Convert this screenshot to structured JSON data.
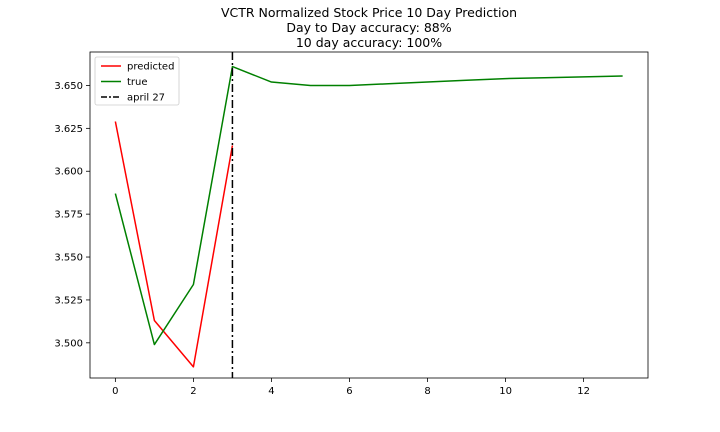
{
  "chart_data": {
    "type": "line",
    "title": [
      "VCTR Normalized Stock Price 10 Day Prediction",
      "Day to Day accuracy: 88%",
      "10 day accuracy: 100%"
    ],
    "xlabel": "",
    "ylabel": "",
    "xlim": [
      -0.65,
      13.65
    ],
    "ylim": [
      3.4795,
      3.6695
    ],
    "x_ticks": [
      0,
      2,
      4,
      6,
      8,
      10,
      12
    ],
    "y_ticks": [
      3.5,
      3.525,
      3.55,
      3.575,
      3.6,
      3.625,
      3.65
    ],
    "grid": false,
    "legend_position": "top-left",
    "series": [
      {
        "name": "predicted",
        "color": "#ff0000",
        "style": "solid",
        "x": [
          0,
          1,
          2,
          3
        ],
        "y": [
          3.629,
          3.513,
          3.486,
          3.615
        ]
      },
      {
        "name": "true",
        "color": "#008000",
        "style": "solid",
        "x": [
          0,
          1,
          2,
          3,
          4,
          5,
          6,
          7,
          8,
          9,
          10,
          11,
          12,
          13
        ],
        "y": [
          3.587,
          3.499,
          3.534,
          3.661,
          3.652,
          3.65,
          3.65,
          3.651,
          3.652,
          3.653,
          3.654,
          3.6545,
          3.655,
          3.6555
        ]
      }
    ],
    "vlines": [
      {
        "name": "april 27",
        "x": 3,
        "color": "#000000",
        "style": "dashdot"
      }
    ]
  }
}
